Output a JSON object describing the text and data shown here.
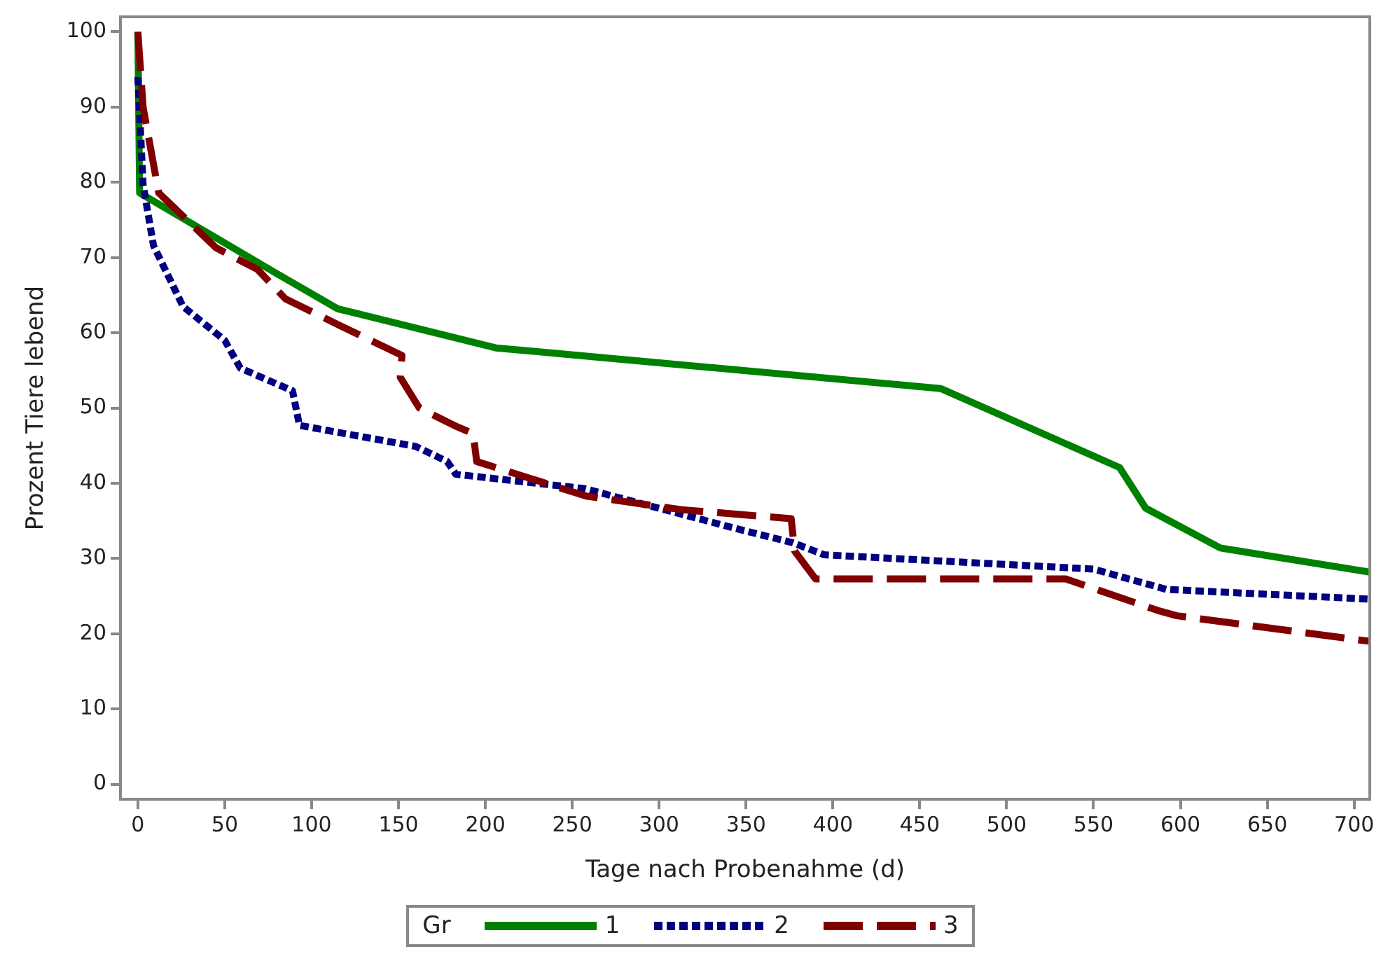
{
  "chart_data": {
    "type": "line",
    "xlabel": "Tage nach Probenahme (d)",
    "ylabel": "Prozent Tiere lebend",
    "legend_title": "Gr",
    "legend": "bottom",
    "grid": false,
    "marker": "none",
    "xlim": [
      -10,
      709
    ],
    "xticks": [
      0,
      50,
      100,
      150,
      200,
      250,
      300,
      350,
      400,
      450,
      500,
      550,
      600,
      650,
      700
    ],
    "ylim": [
      -2,
      102
    ],
    "yticks": [
      0,
      10,
      20,
      30,
      40,
      50,
      60,
      70,
      80,
      90,
      100
    ],
    "series": [
      {
        "name": "1",
        "color": "#008000",
        "line_style": "solid",
        "x": [
          0,
          1,
          79,
          115,
          206,
          462,
          565,
          580,
          623,
          709
        ],
        "values": [
          100,
          78.6,
          68,
          63.2,
          58,
          52.6,
          42.1,
          36.7,
          31.4,
          28.2
        ]
      },
      {
        "name": "2",
        "color": "#000080",
        "line_style": "dotted",
        "x": [
          0,
          3,
          9,
          26,
          50,
          59,
          89,
          93,
          160,
          178,
          183,
          257,
          344,
          377,
          395,
          550,
          592,
          709
        ],
        "values": [
          94,
          79.7,
          71.6,
          63.5,
          59,
          55.3,
          52.3,
          47.7,
          44.9,
          42.9,
          41.2,
          39.3,
          34,
          32.1,
          30.5,
          28.6,
          25.9,
          24.6
        ]
      },
      {
        "name": "3",
        "color": "#800000",
        "line_style": "dashed",
        "x": [
          0,
          3,
          12,
          45,
          69,
          85,
          116,
          152,
          151,
          162,
          182,
          193,
          195,
          258,
          313,
          376,
          378,
          390,
          534,
          587,
          598,
          709
        ],
        "values": [
          100,
          90,
          78.6,
          71.3,
          68.4,
          64.5,
          61,
          57,
          54.1,
          50,
          47.7,
          46.6,
          42.9,
          38.3,
          36.5,
          35.3,
          31,
          27.3,
          27.3,
          23.1,
          22.4,
          19
        ]
      }
    ]
  }
}
